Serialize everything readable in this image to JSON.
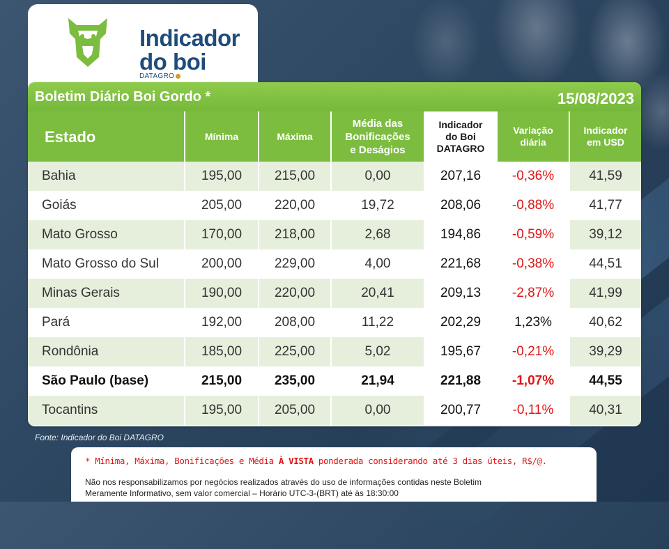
{
  "brand": {
    "title_line1": "Indicador",
    "title_line2": "do boi",
    "subtitle": "DATAGRO",
    "icon": "bull-head-icon",
    "colors": {
      "green": "#7cbd40",
      "navy": "#1f4c7a",
      "red": "#e01515"
    }
  },
  "bulletin": {
    "title": "Boletim Diário Boi Gordo *",
    "date": "15/08/2023"
  },
  "columns": {
    "estado": "Estado",
    "minima": "Mínima",
    "maxima": "Máxima",
    "media": [
      "Média das",
      "Bonificações",
      "e Deságios"
    ],
    "indicador": [
      "Indicador",
      "do Boi",
      "DATAGRO"
    ],
    "variacao": [
      "Variação",
      "diária"
    ],
    "usd": [
      "Indicador",
      "em USD"
    ]
  },
  "rows": [
    {
      "estado": "Bahia",
      "minima": "195,00",
      "maxima": "215,00",
      "media": "0,00",
      "indicador": "207,16",
      "variacao": "-0,36%",
      "usd": "41,59"
    },
    {
      "estado": "Goiás",
      "minima": "205,00",
      "maxima": "220,00",
      "media": "19,72",
      "indicador": "208,06",
      "variacao": "-0,88%",
      "usd": "41,77"
    },
    {
      "estado": "Mato Grosso",
      "minima": "170,00",
      "maxima": "218,00",
      "media": "2,68",
      "indicador": "194,86",
      "variacao": "-0,59%",
      "usd": "39,12"
    },
    {
      "estado": "Mato Grosso do Sul",
      "minima": "200,00",
      "maxima": "229,00",
      "media": "4,00",
      "indicador": "221,68",
      "variacao": "-0,38%",
      "usd": "44,51"
    },
    {
      "estado": "Minas Gerais",
      "minima": "190,00",
      "maxima": "220,00",
      "media": "20,41",
      "indicador": "209,13",
      "variacao": "-2,87%",
      "usd": "41,99"
    },
    {
      "estado": "Pará",
      "minima": "192,00",
      "maxima": "208,00",
      "media": "11,22",
      "indicador": "202,29",
      "variacao": "1,23%",
      "usd": "40,62"
    },
    {
      "estado": "Rondônia",
      "minima": "185,00",
      "maxima": "225,00",
      "media": "5,02",
      "indicador": "195,67",
      "variacao": "-0,21%",
      "usd": "39,29"
    },
    {
      "estado": "São Paulo (base)",
      "minima": "215,00",
      "maxima": "235,00",
      "media": "21,94",
      "indicador": "221,88",
      "variacao": "-1,07%",
      "usd": "44,55"
    },
    {
      "estado": "Tocantins",
      "minima": "195,00",
      "maxima": "205,00",
      "media": "0,00",
      "indicador": "200,77",
      "variacao": "-0,11%",
      "usd": "40,31"
    }
  ],
  "footer": {
    "fonte": "Fonte: Indicador do Boi DATAGRO",
    "note_part1": "* Mínima, Máxima, Bonificações e Média ",
    "note_bold": "À VISTA",
    "note_part2": " ponderada considerando até 3 dias úteis, R$/@.",
    "disclaimer1": "Não nos responsabilizamos por negócios realizados através do uso de informações contidas neste Boletim",
    "disclaimer2": "Meramente Informativo, sem valor comercial – Horário UTC-3-(BRT)  até às 18:30:00"
  }
}
